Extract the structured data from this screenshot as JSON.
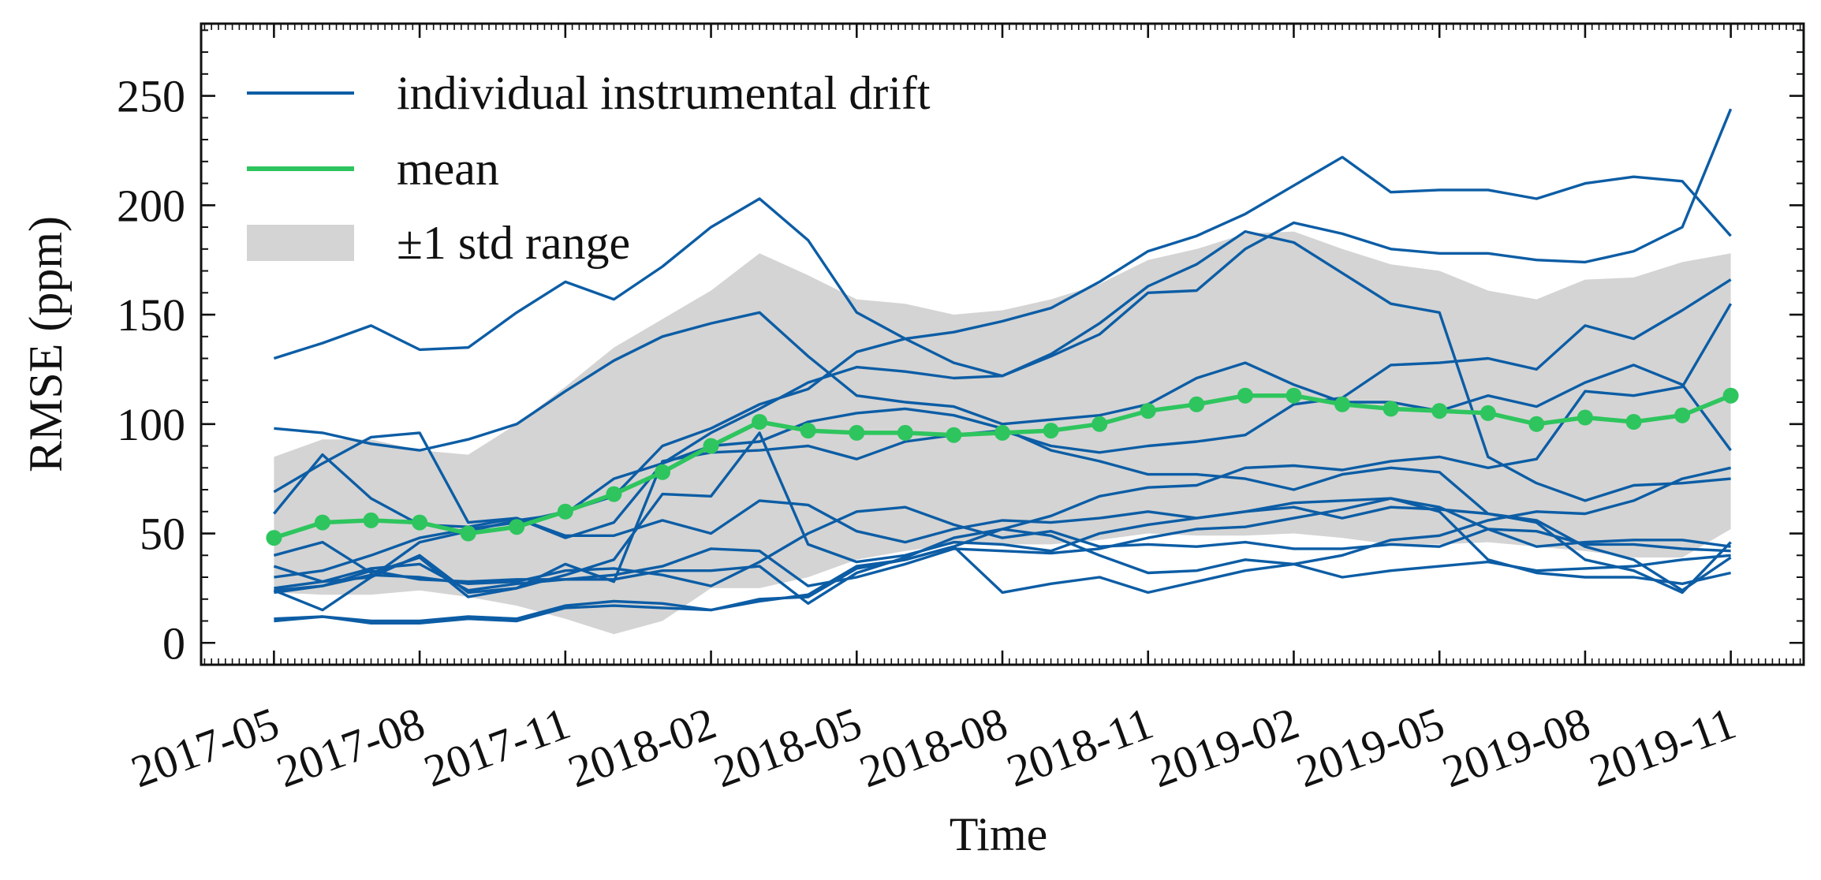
{
  "chart_data": {
    "type": "line",
    "title": "",
    "xlabel": "Time",
    "ylabel": "RMSE (ppm)",
    "ylim": [
      -10,
      283
    ],
    "y_ticks": [
      0,
      50,
      100,
      150,
      200,
      250
    ],
    "y_tick_labels": [
      "0",
      "50",
      "100",
      "150",
      "200",
      "250"
    ],
    "x_tick_labels": [
      "2017-05",
      "2017-08",
      "2017-11",
      "2018-02",
      "2018-05",
      "2018-08",
      "2018-11",
      "2019-02",
      "2019-05",
      "2019-08",
      "2019-11"
    ],
    "x_tick_months": [
      0,
      3,
      6,
      9,
      12,
      15,
      18,
      21,
      24,
      27,
      30
    ],
    "x_range_months": [
      -1.5,
      31.5
    ],
    "x_months": [
      0,
      1,
      2,
      3,
      4,
      5,
      6,
      7,
      8,
      9,
      10,
      11,
      12,
      13,
      14,
      15,
      16,
      17,
      18,
      19,
      20,
      21,
      22,
      23,
      24,
      25,
      26,
      27,
      28,
      29,
      30
    ],
    "legend": {
      "placement": "top-left",
      "entries": [
        {
          "label": "individual instrumental drift",
          "kind": "line"
        },
        {
          "label": "mean",
          "kind": "line"
        },
        {
          "label": "±1 std range",
          "kind": "patch"
        }
      ]
    },
    "colors": {
      "drift": "#0c5da5",
      "mean": "#2ec55e",
      "band": "#d4d4d4"
    },
    "series": [
      {
        "name": "drift-1",
        "values": [
          130,
          137,
          145,
          134,
          135,
          151,
          165,
          157,
          172,
          190,
          203,
          184,
          151,
          139,
          128,
          122,
          132,
          146,
          163,
          173,
          188,
          183,
          169,
          155,
          151,
          85,
          73,
          65,
          72,
          73,
          75
        ]
      },
      {
        "name": "drift-2",
        "values": [
          69,
          82,
          94,
          96,
          55,
          57,
          48,
          55,
          82,
          90,
          92,
          101,
          105,
          107,
          104,
          98,
          88,
          83,
          77,
          77,
          75,
          70,
          77,
          80,
          78,
          59,
          56,
          44,
          38,
          24,
          39
        ]
      },
      {
        "name": "drift-3",
        "values": [
          59,
          86,
          66,
          54,
          53,
          57,
          49,
          49,
          56,
          50,
          65,
          63,
          51,
          46,
          52,
          56,
          55,
          57,
          60,
          57,
          60,
          62,
          57,
          62,
          61,
          59,
          55,
          38,
          33,
          23,
          46
        ]
      },
      {
        "name": "drift-4",
        "values": [
          98,
          96,
          91,
          88,
          93,
          100,
          115,
          129,
          140,
          146,
          151,
          131,
          113,
          110,
          108,
          100,
          102,
          104,
          109,
          121,
          128,
          118,
          110,
          110,
          106,
          113,
          108,
          119,
          127,
          118,
          88
        ]
      },
      {
        "name": "drift-5",
        "values": [
          35,
          28,
          34,
          36,
          24,
          27,
          29,
          31,
          35,
          43,
          42,
          26,
          30,
          36,
          43,
          42,
          41,
          43,
          48,
          52,
          53,
          57,
          61,
          66,
          62,
          52,
          51,
          45,
          45,
          43,
          42
        ]
      },
      {
        "name": "drift-6",
        "values": [
          23,
          26,
          31,
          30,
          27,
          28,
          33,
          34,
          31,
          26,
          37,
          50,
          60,
          62,
          54,
          48,
          51,
          44,
          45,
          44,
          46,
          43,
          43,
          45,
          44,
          52,
          44,
          46,
          47,
          47,
          44
        ]
      },
      {
        "name": "drift-7",
        "values": [
          24,
          26,
          33,
          29,
          28,
          29,
          29,
          29,
          33,
          33,
          35,
          18,
          32,
          39,
          48,
          52,
          49,
          40,
          32,
          33,
          38,
          36,
          30,
          33,
          35,
          37,
          33,
          34,
          35,
          38,
          40
        ]
      },
      {
        "name": "drift-8",
        "values": [
          11,
          12,
          10,
          10,
          12,
          11,
          17,
          19,
          18,
          15,
          19,
          22,
          35,
          38,
          44,
          52,
          58,
          67,
          71,
          72,
          80,
          81,
          79,
          83,
          85,
          80,
          84,
          115,
          113,
          117,
          155
        ]
      },
      {
        "name": "drift-9",
        "values": [
          10,
          12,
          9,
          9,
          11,
          10,
          16,
          17,
          16,
          15,
          20,
          21,
          34,
          38,
          44,
          23,
          27,
          30,
          23,
          28,
          33,
          36,
          40,
          47,
          49,
          56,
          60,
          59,
          65,
          75,
          80
        ]
      },
      {
        "name": "drift-10",
        "values": [
          24,
          15,
          30,
          40,
          23,
          25,
          36,
          28,
          83,
          87,
          88,
          90,
          84,
          92,
          95,
          97,
          90,
          87,
          90,
          92,
          95,
          109,
          112,
          127,
          128,
          130,
          125,
          145,
          139,
          152,
          166
        ]
      },
      {
        "name": "drift-11",
        "values": [
          40,
          46,
          32,
          39,
          21,
          25,
          31,
          38,
          68,
          67,
          96,
          45,
          37,
          40,
          46,
          45,
          42,
          50,
          54,
          57,
          60,
          64,
          65,
          66,
          60,
          38,
          32,
          30,
          30,
          27,
          32
        ]
      },
      {
        "name": "drift-12",
        "values": [
          30,
          33,
          40,
          48,
          52,
          55,
          60,
          67,
          90,
          98,
          109,
          116,
          133,
          139,
          142,
          147,
          153,
          165,
          179,
          186,
          196,
          209,
          222,
          206,
          207,
          207,
          203,
          210,
          213,
          211,
          186
        ]
      },
      {
        "name": "drift-13",
        "values": [
          25,
          28,
          30,
          46,
          51,
          56,
          59,
          75,
          82,
          96,
          107,
          119,
          126,
          124,
          121,
          122,
          131,
          141,
          160,
          161,
          180,
          192,
          187,
          180,
          178,
          178,
          175,
          174,
          179,
          190,
          244
        ]
      },
      {
        "name": "mean",
        "values": [
          48,
          55,
          56,
          55,
          50,
          53,
          60,
          68,
          78,
          90,
          101,
          97,
          96,
          96,
          95,
          96,
          97,
          100,
          106,
          109,
          113,
          113,
          109,
          107,
          106,
          105,
          100,
          103,
          101,
          104,
          113
        ]
      },
      {
        "name": "+1 std",
        "values": [
          85,
          93,
          93,
          88,
          86,
          100,
          117,
          135,
          148,
          161,
          178,
          168,
          157,
          155,
          150,
          152,
          157,
          164,
          175,
          180,
          187,
          188,
          180,
          173,
          170,
          161,
          157,
          166,
          167,
          174,
          178
        ]
      },
      {
        "name": "-1 std",
        "values": [
          23,
          22,
          22,
          24,
          21,
          17,
          11,
          4,
          10,
          25,
          25,
          30,
          38,
          42,
          45,
          45,
          45,
          47,
          50,
          49,
          49,
          50,
          48,
          45,
          45,
          46,
          44,
          42,
          39,
          39,
          52
        ]
      }
    ]
  }
}
